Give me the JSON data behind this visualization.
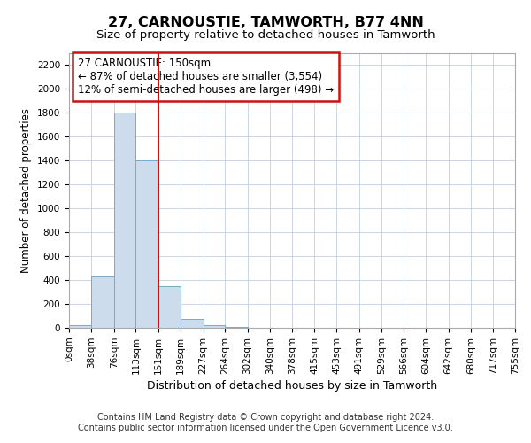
{
  "title": "27, CARNOUSTIE, TAMWORTH, B77 4NN",
  "subtitle": "Size of property relative to detached houses in Tamworth",
  "xlabel": "Distribution of detached houses by size in Tamworth",
  "ylabel": "Number of detached properties",
  "bar_color": "#ccdcec",
  "bar_edge_color": "#7aaac8",
  "grid_color": "#c5cfe0",
  "background_color": "#ffffff",
  "fig_background": "#ffffff",
  "property_line_color": "#cc1111",
  "property_line_x": 151,
  "annotation_text": "27 CARNOUSTIE: 150sqm\n← 87% of detached houses are smaller (3,554)\n12% of semi-detached houses are larger (498) →",
  "annotation_box_color": "#ffffff",
  "annotation_border_color": "#cc1111",
  "bin_edges": [
    0,
    38,
    76,
    113,
    151,
    189,
    227,
    264,
    302,
    340,
    378,
    415,
    453,
    491,
    529,
    566,
    604,
    642,
    680,
    717,
    755
  ],
  "bar_heights": [
    20,
    430,
    1800,
    1400,
    350,
    75,
    25,
    5,
    0,
    0,
    0,
    0,
    0,
    0,
    0,
    0,
    0,
    0,
    0,
    0
  ],
  "ylim": [
    0,
    2300
  ],
  "yticks": [
    0,
    200,
    400,
    600,
    800,
    1000,
    1200,
    1400,
    1600,
    1800,
    2000,
    2200
  ],
  "footer_text": "Contains HM Land Registry data © Crown copyright and database right 2024.\nContains public sector information licensed under the Open Government Licence v3.0.",
  "title_fontsize": 11.5,
  "subtitle_fontsize": 9.5,
  "tick_fontsize": 7.5,
  "ylabel_fontsize": 8.5,
  "xlabel_fontsize": 9,
  "annotation_fontsize": 8.5,
  "footer_fontsize": 7
}
